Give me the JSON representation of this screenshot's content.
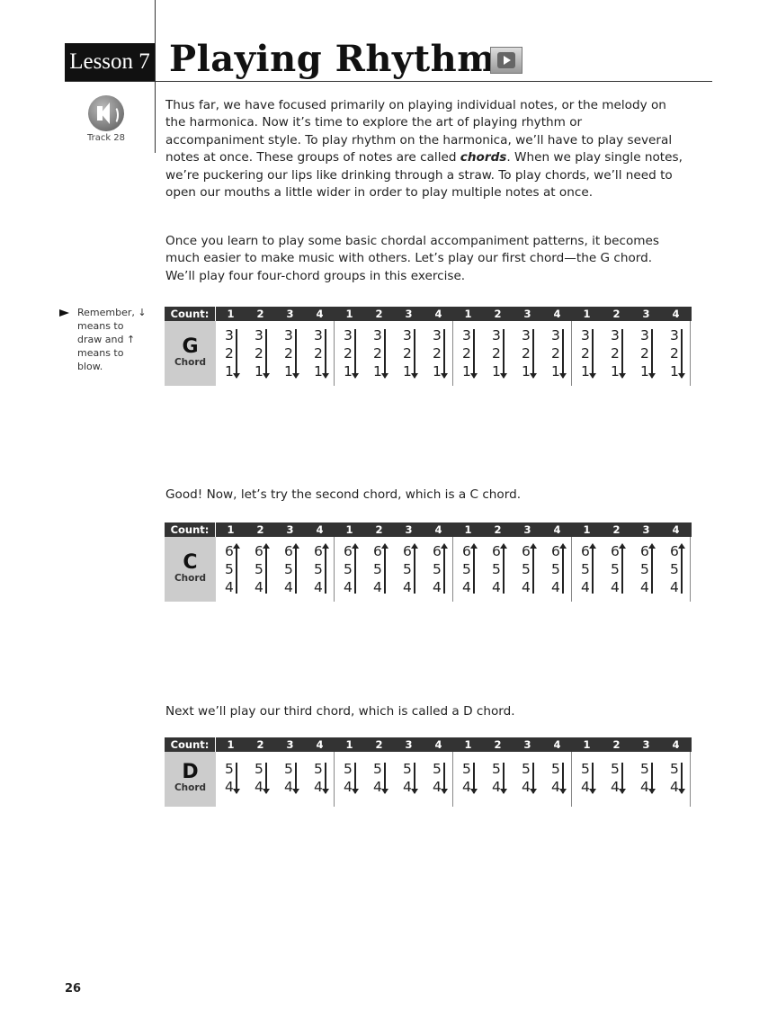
{
  "header": {
    "lesson_label": "Lesson 7",
    "title": "Playing Rhythm",
    "video_icon": "play-button-icon"
  },
  "audio": {
    "icon": "speaker-icon",
    "track_label": "Track 28"
  },
  "paragraphs": {
    "intro": "Thus far, we have focused primarily on playing individual notes, or the melody on the harmonica. Now it’s time to explore the art of playing rhythm or accompaniment style. To play rhythm on the harmonica, we’ll have to play several notes at once. These groups of notes are called ",
    "intro_em": "chords",
    "intro_rest": ". When we play single notes, we’re puckering our lips like drinking through a straw. To play chords, we’ll need to open our mouths a little wider in order to play multiple notes at once.",
    "second": "Once you learn to play some basic chordal accompaniment patterns, it becomes much easier to make music with others. Let’s play our first chord—the G chord. We’ll play four four-chord groups in this exercise.",
    "c_intro": "Good!  Now, let’s try the second chord, which is a C chord.",
    "d_intro": "Next we’ll play our third chord, which is called a D chord."
  },
  "sidenote": "Remember, ↓ means to draw and ↑ means to blow.",
  "count_label": "Count:",
  "beats": [
    "1",
    "2",
    "3",
    "4",
    "1",
    "2",
    "3",
    "4",
    "1",
    "2",
    "3",
    "4",
    "1",
    "2",
    "3",
    "4"
  ],
  "chords": [
    {
      "letter": "G",
      "word": "Chord",
      "notes": [
        "3",
        "2",
        "1"
      ],
      "direction": "draw"
    },
    {
      "letter": "C",
      "word": "Chord",
      "notes": [
        "6",
        "5",
        "4"
      ],
      "direction": "blow"
    },
    {
      "letter": "D",
      "word": "Chord",
      "notes": [
        "5",
        "4"
      ],
      "direction": "draw"
    }
  ],
  "page_number": "26"
}
